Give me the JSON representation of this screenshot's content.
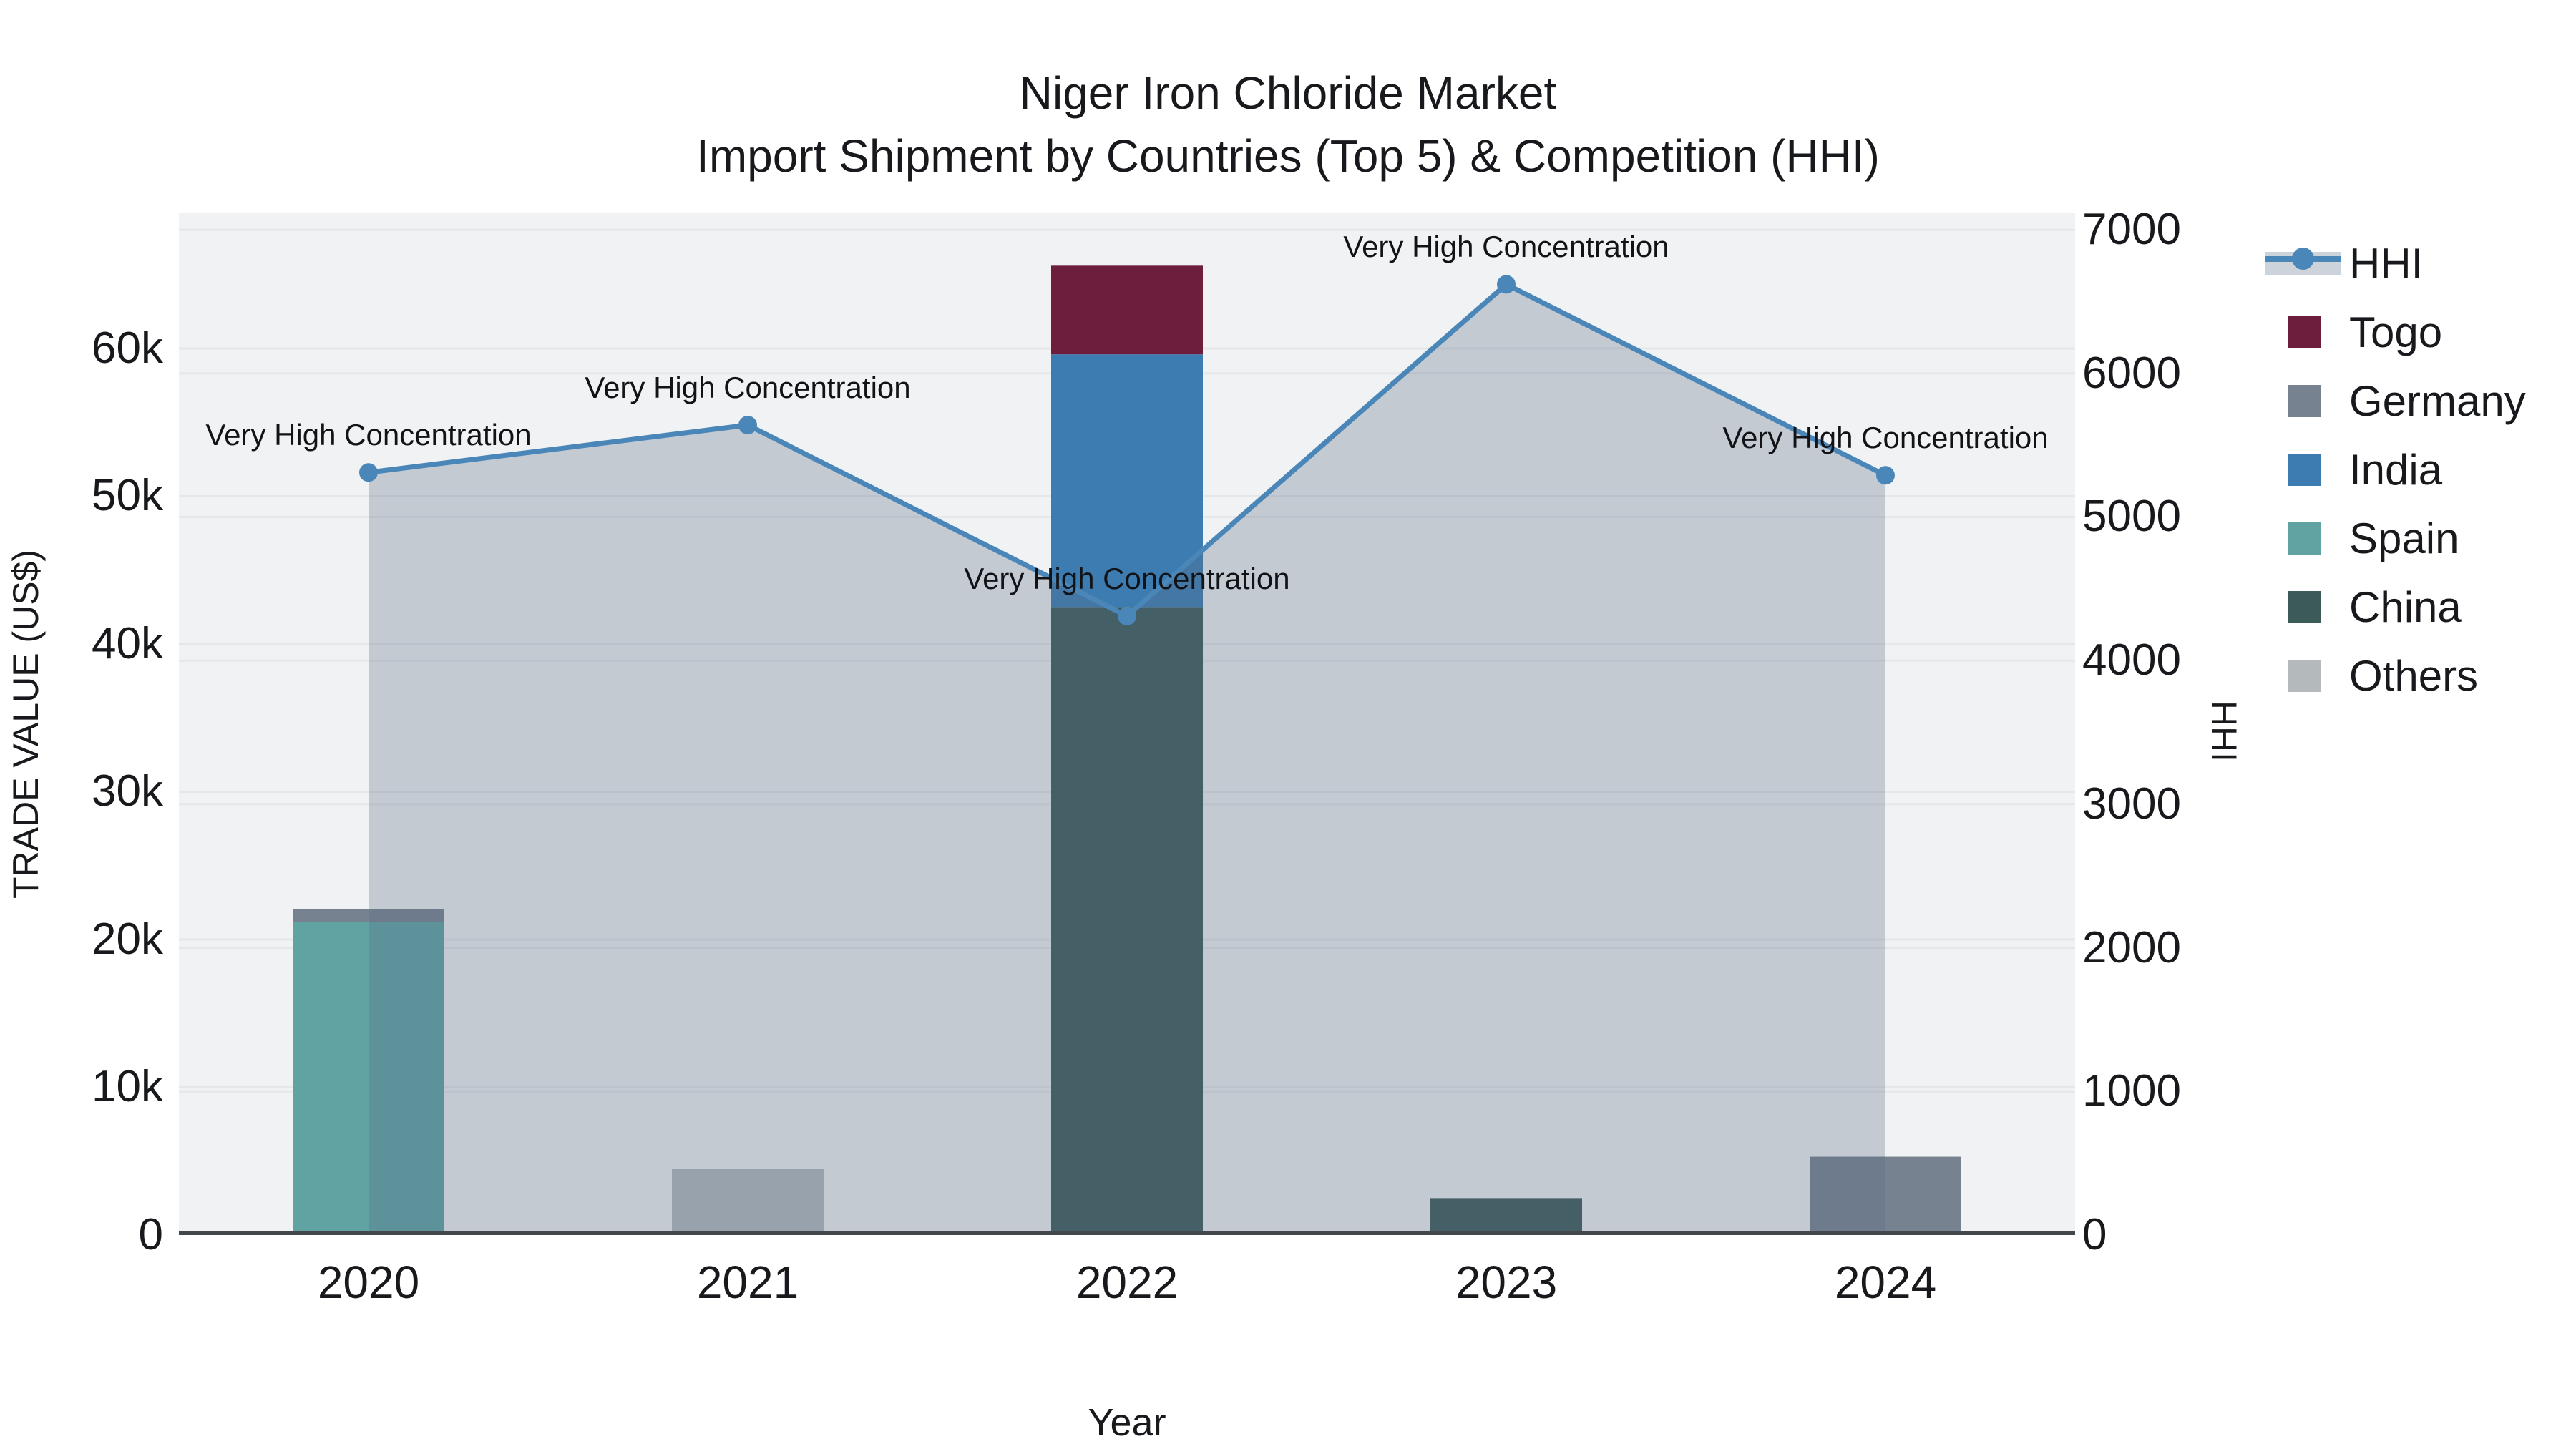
{
  "title": {
    "line1": "Niger Iron Chloride Market",
    "line2": "Import Shipment by Countries (Top 5) & Competition (HHI)"
  },
  "axes": {
    "left": {
      "title": "TRADE VALUE (US$)",
      "range": [
        0,
        69150
      ],
      "tick_values": [
        0,
        10000,
        20000,
        30000,
        40000,
        50000,
        60000
      ],
      "tick_labels": [
        "0",
        "10k",
        "20k",
        "30k",
        "40k",
        "50k",
        "60k"
      ],
      "grid_values": [
        10000,
        20000,
        30000,
        40000,
        50000,
        60000
      ]
    },
    "right": {
      "title": "HHI",
      "range": [
        0,
        7115
      ],
      "tick_values": [
        0,
        1000,
        2000,
        3000,
        4000,
        5000,
        6000,
        7000
      ],
      "tick_labels": [
        "0",
        "1000",
        "2000",
        "3000",
        "4000",
        "5000",
        "6000",
        "7000"
      ],
      "grid_values": [
        1000,
        2000,
        3000,
        4000,
        5000,
        6000,
        7000
      ]
    },
    "x": {
      "title": "Year"
    }
  },
  "chart_data": {
    "type": "combo: stacked bar (left axis) + line with area fill (right axis)",
    "categories": [
      "2020",
      "2021",
      "2022",
      "2023",
      "2024"
    ],
    "bar_series_bottom_to_top": [
      {
        "name": "Others",
        "color": "#b4b9bc",
        "values": [
          0,
          4500,
          0,
          0,
          150
        ]
      },
      {
        "name": "China",
        "color": "#3b5a58",
        "values": [
          0,
          0,
          42500,
          2500,
          0
        ]
      },
      {
        "name": "Spain",
        "color": "#60a3a2",
        "values": [
          21200,
          0,
          0,
          0,
          0
        ]
      },
      {
        "name": "India",
        "color": "#3d7cb0",
        "values": [
          0,
          0,
          17100,
          0,
          0
        ]
      },
      {
        "name": "Germany",
        "color": "#76828f",
        "values": [
          850,
          0,
          0,
          0,
          5150
        ]
      },
      {
        "name": "Togo",
        "color": "#6e1e3d",
        "values": [
          0,
          0,
          6000,
          0,
          0
        ]
      }
    ],
    "line_series": {
      "name": "HHI",
      "color": "#4a86b8",
      "area_fill": "rgba(90,110,135,0.30)",
      "values": [
        5310,
        5640,
        4310,
        6620,
        5290
      ]
    },
    "annotations": [
      "Very High Concentration",
      "Very High Concentration",
      "Very High Concentration",
      "Very High Concentration",
      "Very High Concentration"
    ],
    "plot_background": "#f1f2f3",
    "grid_color": "#e5e7e9",
    "axis_line_color": "#43474b"
  },
  "legend": {
    "items": [
      {
        "label": "HHI",
        "type": "line",
        "color": "#4a86b8"
      },
      {
        "label": "Togo",
        "type": "swatch",
        "color": "#6e1e3d"
      },
      {
        "label": "Germany",
        "type": "swatch",
        "color": "#76828f"
      },
      {
        "label": "India",
        "type": "swatch",
        "color": "#3d7cb0"
      },
      {
        "label": "Spain",
        "type": "swatch",
        "color": "#60a3a2"
      },
      {
        "label": "China",
        "type": "swatch",
        "color": "#3b5a58"
      },
      {
        "label": "Others",
        "type": "swatch",
        "color": "#b4b9bc"
      }
    ]
  }
}
